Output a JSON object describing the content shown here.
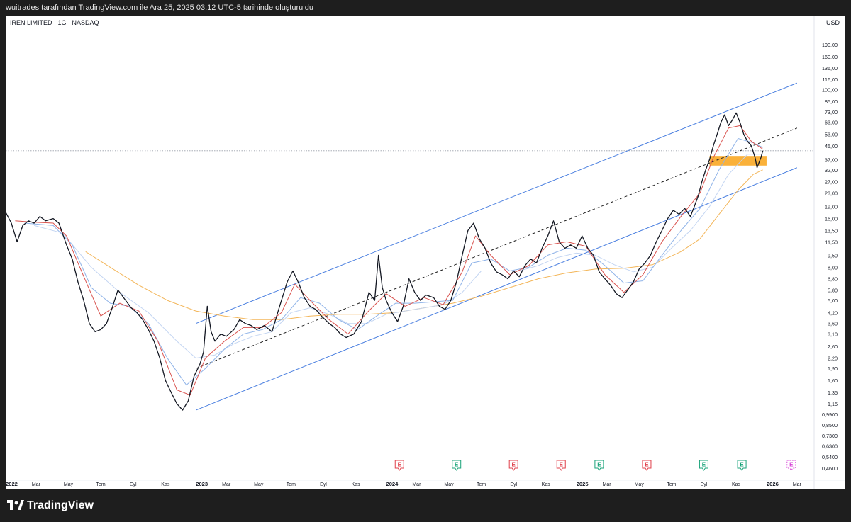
{
  "header": {
    "caption": "wuitrades tarafından TradingView.com ile Ara 25, 2025 03:12 UTC-5 tarihinde oluşturuldu"
  },
  "chart_data": {
    "type": "line",
    "title": "IREN LIMITED · 1G · NASDAQ",
    "currency": "USD",
    "y_scale": "log",
    "ylim": [
      0.42,
      230
    ],
    "xlim": [
      2022.0,
      2026.25
    ],
    "y_ticks": [
      {
        "value": 190,
        "label": "190,00"
      },
      {
        "value": 160,
        "label": "160,00"
      },
      {
        "value": 136,
        "label": "136,00"
      },
      {
        "value": 116,
        "label": "116,00"
      },
      {
        "value": 100,
        "label": "100,00"
      },
      {
        "value": 85,
        "label": "85,00"
      },
      {
        "value": 73,
        "label": "73,00"
      },
      {
        "value": 63,
        "label": "63,00"
      },
      {
        "value": 53,
        "label": "53,00"
      },
      {
        "value": 45,
        "label": "45,00"
      },
      {
        "value": 37,
        "label": "37,00"
      },
      {
        "value": 32,
        "label": "32,00"
      },
      {
        "value": 27,
        "label": "27,00"
      },
      {
        "value": 23,
        "label": "23,00"
      },
      {
        "value": 19,
        "label": "19,00"
      },
      {
        "value": 16,
        "label": "16,00"
      },
      {
        "value": 13.5,
        "label": "13,50"
      },
      {
        "value": 11.5,
        "label": "11,50"
      },
      {
        "value": 9.5,
        "label": "9,50"
      },
      {
        "value": 8.0,
        "label": "8,00"
      },
      {
        "value": 6.8,
        "label": "6,80"
      },
      {
        "value": 5.8,
        "label": "5,80"
      },
      {
        "value": 5.0,
        "label": "5,00"
      },
      {
        "value": 4.2,
        "label": "4,20"
      },
      {
        "value": 3.6,
        "label": "3,60"
      },
      {
        "value": 3.1,
        "label": "3,10"
      },
      {
        "value": 2.6,
        "label": "2,60"
      },
      {
        "value": 2.2,
        "label": "2,20"
      },
      {
        "value": 1.9,
        "label": "1,90"
      },
      {
        "value": 1.6,
        "label": "1,60"
      },
      {
        "value": 1.35,
        "label": "1,35"
      },
      {
        "value": 1.15,
        "label": "1,15"
      },
      {
        "value": 0.99,
        "label": "0,9900"
      },
      {
        "value": 0.85,
        "label": "0,8500"
      },
      {
        "value": 0.73,
        "label": "0,7300"
      },
      {
        "value": 0.63,
        "label": "0,6300"
      },
      {
        "value": 0.54,
        "label": "0,5400"
      },
      {
        "value": 0.46,
        "label": "0,4600"
      }
    ],
    "x_ticks": [
      {
        "t": 2022.0,
        "label": "2022",
        "bold": true
      },
      {
        "t": 2022.16,
        "label": "Mar"
      },
      {
        "t": 2022.33,
        "label": "May"
      },
      {
        "t": 2022.5,
        "label": "Tem"
      },
      {
        "t": 2022.67,
        "label": "Eyl"
      },
      {
        "t": 2022.84,
        "label": "Kas"
      },
      {
        "t": 2023.0,
        "label": "2023",
        "bold": true
      },
      {
        "t": 2023.16,
        "label": "Mar"
      },
      {
        "t": 2023.33,
        "label": "May"
      },
      {
        "t": 2023.5,
        "label": "Tem"
      },
      {
        "t": 2023.67,
        "label": "Eyl"
      },
      {
        "t": 2023.84,
        "label": "Kas"
      },
      {
        "t": 2024.0,
        "label": "2024",
        "bold": true
      },
      {
        "t": 2024.16,
        "label": "Mar"
      },
      {
        "t": 2024.33,
        "label": "May"
      },
      {
        "t": 2024.5,
        "label": "Tem"
      },
      {
        "t": 2024.67,
        "label": "Eyl"
      },
      {
        "t": 2024.84,
        "label": "Kas"
      },
      {
        "t": 2025.0,
        "label": "2025",
        "bold": true
      },
      {
        "t": 2025.16,
        "label": "Mar"
      },
      {
        "t": 2025.33,
        "label": "May"
      },
      {
        "t": 2025.5,
        "label": "Tem"
      },
      {
        "t": 2025.67,
        "label": "Eyl"
      },
      {
        "t": 2025.84,
        "label": "Kas"
      },
      {
        "t": 2026.0,
        "label": "2026",
        "bold": true
      },
      {
        "t": 2026.16,
        "label": "Mar"
      }
    ],
    "current_price_level": 42,
    "price": [
      [
        2022.0,
        17.5
      ],
      [
        2022.03,
        15.0
      ],
      [
        2022.06,
        11.5
      ],
      [
        2022.09,
        14.5
      ],
      [
        2022.12,
        15.5
      ],
      [
        2022.15,
        15.0
      ],
      [
        2022.18,
        16.5
      ],
      [
        2022.21,
        15.5
      ],
      [
        2022.25,
        16.0
      ],
      [
        2022.28,
        15.0
      ],
      [
        2022.32,
        11.0
      ],
      [
        2022.35,
        9.0
      ],
      [
        2022.38,
        6.5
      ],
      [
        2022.41,
        5.0
      ],
      [
        2022.44,
        3.6
      ],
      [
        2022.47,
        3.2
      ],
      [
        2022.5,
        3.3
      ],
      [
        2022.53,
        3.6
      ],
      [
        2022.56,
        4.5
      ],
      [
        2022.59,
        5.8
      ],
      [
        2022.62,
        5.2
      ],
      [
        2022.66,
        4.5
      ],
      [
        2022.69,
        4.2
      ],
      [
        2022.72,
        3.8
      ],
      [
        2022.75,
        3.3
      ],
      [
        2022.78,
        2.8
      ],
      [
        2022.81,
        2.2
      ],
      [
        2022.84,
        1.6
      ],
      [
        2022.87,
        1.35
      ],
      [
        2022.9,
        1.15
      ],
      [
        2022.93,
        1.05
      ],
      [
        2022.96,
        1.2
      ],
      [
        2022.99,
        1.7
      ],
      [
        2023.02,
        2.0
      ],
      [
        2023.04,
        2.4
      ],
      [
        2023.06,
        4.6
      ],
      [
        2023.08,
        3.2
      ],
      [
        2023.1,
        2.8
      ],
      [
        2023.13,
        3.1
      ],
      [
        2023.16,
        3.0
      ],
      [
        2023.2,
        3.3
      ],
      [
        2023.23,
        3.8
      ],
      [
        2023.26,
        3.6
      ],
      [
        2023.29,
        3.5
      ],
      [
        2023.32,
        3.3
      ],
      [
        2023.36,
        3.5
      ],
      [
        2023.4,
        3.2
      ],
      [
        2023.44,
        4.6
      ],
      [
        2023.48,
        6.5
      ],
      [
        2023.51,
        7.6
      ],
      [
        2023.54,
        6.4
      ],
      [
        2023.57,
        5.2
      ],
      [
        2023.6,
        4.6
      ],
      [
        2023.63,
        4.4
      ],
      [
        2023.66,
        4.0
      ],
      [
        2023.7,
        3.6
      ],
      [
        2023.73,
        3.4
      ],
      [
        2023.76,
        3.1
      ],
      [
        2023.79,
        2.95
      ],
      [
        2023.83,
        3.1
      ],
      [
        2023.87,
        3.7
      ],
      [
        2023.91,
        5.6
      ],
      [
        2023.94,
        5.0
      ],
      [
        2023.96,
        9.5
      ],
      [
        2023.98,
        6.0
      ],
      [
        2024.0,
        5.0
      ],
      [
        2024.03,
        4.2
      ],
      [
        2024.06,
        3.7
      ],
      [
        2024.09,
        4.6
      ],
      [
        2024.12,
        6.8
      ],
      [
        2024.15,
        5.6
      ],
      [
        2024.18,
        5.0
      ],
      [
        2024.21,
        5.4
      ],
      [
        2024.25,
        5.2
      ],
      [
        2024.28,
        4.6
      ],
      [
        2024.31,
        4.4
      ],
      [
        2024.34,
        5.0
      ],
      [
        2024.37,
        6.5
      ],
      [
        2024.4,
        9.5
      ],
      [
        2024.43,
        13.5
      ],
      [
        2024.46,
        15.0
      ],
      [
        2024.49,
        12.0
      ],
      [
        2024.52,
        10.5
      ],
      [
        2024.55,
        8.5
      ],
      [
        2024.58,
        7.5
      ],
      [
        2024.61,
        7.2
      ],
      [
        2024.64,
        6.8
      ],
      [
        2024.67,
        7.6
      ],
      [
        2024.7,
        7.0
      ],
      [
        2024.73,
        8.2
      ],
      [
        2024.76,
        9.0
      ],
      [
        2024.79,
        8.5
      ],
      [
        2024.82,
        10.5
      ],
      [
        2024.85,
        12.5
      ],
      [
        2024.88,
        15.5
      ],
      [
        2024.91,
        11.5
      ],
      [
        2024.94,
        10.5
      ],
      [
        2024.97,
        11.0
      ],
      [
        2025.0,
        10.5
      ],
      [
        2025.03,
        12.5
      ],
      [
        2025.06,
        10.5
      ],
      [
        2025.09,
        9.5
      ],
      [
        2025.12,
        7.5
      ],
      [
        2025.15,
        6.8
      ],
      [
        2025.18,
        6.2
      ],
      [
        2025.21,
        5.5
      ],
      [
        2025.24,
        5.2
      ],
      [
        2025.27,
        5.8
      ],
      [
        2025.3,
        6.5
      ],
      [
        2025.33,
        7.8
      ],
      [
        2025.36,
        8.5
      ],
      [
        2025.39,
        9.5
      ],
      [
        2025.42,
        11.5
      ],
      [
        2025.45,
        13.5
      ],
      [
        2025.48,
        16.0
      ],
      [
        2025.51,
        18.0
      ],
      [
        2025.54,
        17.0
      ],
      [
        2025.57,
        18.5
      ],
      [
        2025.6,
        16.5
      ],
      [
        2025.62,
        19.0
      ],
      [
        2025.64,
        22.0
      ],
      [
        2025.66,
        27.0
      ],
      [
        2025.68,
        32.0
      ],
      [
        2025.7,
        37.0
      ],
      [
        2025.72,
        45.0
      ],
      [
        2025.74,
        53.0
      ],
      [
        2025.76,
        63.0
      ],
      [
        2025.78,
        70.0
      ],
      [
        2025.8,
        60.0
      ],
      [
        2025.82,
        65.0
      ],
      [
        2025.84,
        72.0
      ],
      [
        2025.86,
        63.0
      ],
      [
        2025.88,
        53.0
      ],
      [
        2025.9,
        48.0
      ],
      [
        2025.92,
        45.0
      ],
      [
        2025.94,
        38.0
      ],
      [
        2025.95,
        33.0
      ],
      [
        2025.97,
        38.0
      ],
      [
        2025.98,
        42.0
      ]
    ],
    "ma_fast": [
      [
        2022.05,
        15.5
      ],
      [
        2022.15,
        15.2
      ],
      [
        2022.25,
        15.0
      ],
      [
        2022.32,
        12.5
      ],
      [
        2022.4,
        7.5
      ],
      [
        2022.5,
        4.0
      ],
      [
        2022.6,
        4.8
      ],
      [
        2022.7,
        4.3
      ],
      [
        2022.8,
        2.8
      ],
      [
        2022.9,
        1.4
      ],
      [
        2022.97,
        1.3
      ],
      [
        2023.05,
        2.2
      ],
      [
        2023.15,
        2.8
      ],
      [
        2023.25,
        3.4
      ],
      [
        2023.35,
        3.4
      ],
      [
        2023.45,
        4.2
      ],
      [
        2023.52,
        6.3
      ],
      [
        2023.6,
        5.0
      ],
      [
        2023.7,
        3.8
      ],
      [
        2023.8,
        3.1
      ],
      [
        2023.9,
        4.2
      ],
      [
        2024.0,
        5.5
      ],
      [
        2024.1,
        4.6
      ],
      [
        2024.2,
        5.2
      ],
      [
        2024.3,
        4.7
      ],
      [
        2024.4,
        7.5
      ],
      [
        2024.47,
        12.5
      ],
      [
        2024.55,
        9.5
      ],
      [
        2024.65,
        7.2
      ],
      [
        2024.75,
        8.2
      ],
      [
        2024.85,
        11.0
      ],
      [
        2024.95,
        11.5
      ],
      [
        2025.05,
        10.8
      ],
      [
        2025.15,
        7.2
      ],
      [
        2025.25,
        5.6
      ],
      [
        2025.35,
        7.2
      ],
      [
        2025.45,
        11.5
      ],
      [
        2025.55,
        16.5
      ],
      [
        2025.65,
        23.0
      ],
      [
        2025.72,
        38.0
      ],
      [
        2025.8,
        58.0
      ],
      [
        2025.86,
        60.0
      ],
      [
        2025.92,
        48.0
      ],
      [
        2025.98,
        43.0
      ]
    ],
    "ma_mid": [
      [
        2022.1,
        15.0
      ],
      [
        2022.25,
        14.5
      ],
      [
        2022.35,
        11.0
      ],
      [
        2022.45,
        6.0
      ],
      [
        2022.55,
        4.8
      ],
      [
        2022.65,
        4.6
      ],
      [
        2022.75,
        3.6
      ],
      [
        2022.85,
        2.2
      ],
      [
        2022.95,
        1.5
      ],
      [
        2023.05,
        1.9
      ],
      [
        2023.15,
        2.5
      ],
      [
        2023.25,
        3.1
      ],
      [
        2023.35,
        3.3
      ],
      [
        2023.45,
        3.8
      ],
      [
        2023.55,
        5.2
      ],
      [
        2023.65,
        4.8
      ],
      [
        2023.75,
        3.8
      ],
      [
        2023.85,
        3.3
      ],
      [
        2023.95,
        4.0
      ],
      [
        2024.05,
        4.8
      ],
      [
        2024.15,
        4.8
      ],
      [
        2024.25,
        4.9
      ],
      [
        2024.35,
        5.0
      ],
      [
        2024.45,
        8.5
      ],
      [
        2024.55,
        9.0
      ],
      [
        2024.65,
        7.6
      ],
      [
        2024.75,
        8.0
      ],
      [
        2024.85,
        9.5
      ],
      [
        2024.95,
        10.5
      ],
      [
        2025.05,
        10.2
      ],
      [
        2025.15,
        8.2
      ],
      [
        2025.25,
        6.4
      ],
      [
        2025.35,
        6.6
      ],
      [
        2025.45,
        9.5
      ],
      [
        2025.55,
        13.5
      ],
      [
        2025.65,
        18.5
      ],
      [
        2025.75,
        32.0
      ],
      [
        2025.85,
        50.0
      ],
      [
        2025.93,
        47.0
      ],
      [
        2025.98,
        44.0
      ]
    ],
    "ma_slow": [
      [
        2022.15,
        14.5
      ],
      [
        2022.3,
        13.0
      ],
      [
        2022.45,
        8.0
      ],
      [
        2022.6,
        5.6
      ],
      [
        2022.75,
        4.2
      ],
      [
        2022.9,
        2.8
      ],
      [
        2023.0,
        2.2
      ],
      [
        2023.1,
        2.3
      ],
      [
        2023.2,
        2.7
      ],
      [
        2023.3,
        3.0
      ],
      [
        2023.4,
        3.2
      ],
      [
        2023.5,
        4.2
      ],
      [
        2023.6,
        4.5
      ],
      [
        2023.7,
        4.1
      ],
      [
        2023.8,
        3.6
      ],
      [
        2023.9,
        3.6
      ],
      [
        2024.0,
        4.1
      ],
      [
        2024.1,
        4.3
      ],
      [
        2024.2,
        4.5
      ],
      [
        2024.3,
        4.7
      ],
      [
        2024.4,
        5.6
      ],
      [
        2024.5,
        7.6
      ],
      [
        2024.6,
        7.6
      ],
      [
        2024.7,
        7.6
      ],
      [
        2024.8,
        8.2
      ],
      [
        2024.9,
        9.2
      ],
      [
        2025.0,
        9.8
      ],
      [
        2025.1,
        9.5
      ],
      [
        2025.2,
        8.3
      ],
      [
        2025.3,
        7.5
      ],
      [
        2025.4,
        8.0
      ],
      [
        2025.5,
        10.5
      ],
      [
        2025.6,
        13.5
      ],
      [
        2025.7,
        19.0
      ],
      [
        2025.8,
        30.0
      ],
      [
        2025.9,
        40.0
      ],
      [
        2025.98,
        40.0
      ]
    ],
    "ma_200": [
      [
        2022.42,
        10.0
      ],
      [
        2022.55,
        8.0
      ],
      [
        2022.7,
        6.2
      ],
      [
        2022.85,
        5.0
      ],
      [
        2023.0,
        4.3
      ],
      [
        2023.15,
        4.0
      ],
      [
        2023.3,
        3.8
      ],
      [
        2023.45,
        3.8
      ],
      [
        2023.6,
        4.0
      ],
      [
        2023.75,
        4.1
      ],
      [
        2023.9,
        4.1
      ],
      [
        2024.05,
        4.2
      ],
      [
        2024.2,
        4.5
      ],
      [
        2024.35,
        4.8
      ],
      [
        2024.5,
        5.3
      ],
      [
        2024.65,
        6.0
      ],
      [
        2024.8,
        6.8
      ],
      [
        2024.95,
        7.4
      ],
      [
        2025.1,
        7.8
      ],
      [
        2025.25,
        7.9
      ],
      [
        2025.4,
        8.3
      ],
      [
        2025.55,
        10.0
      ],
      [
        2025.65,
        12.0
      ],
      [
        2025.75,
        17.0
      ],
      [
        2025.85,
        24.0
      ],
      [
        2025.93,
        30.0
      ],
      [
        2025.98,
        32.0
      ]
    ],
    "channel": {
      "upper": [
        [
          2023.0,
          3.6
        ],
        [
          2026.16,
          110.0
        ]
      ],
      "middle": [
        [
          2023.0,
          1.9
        ],
        [
          2026.16,
          58.0
        ]
      ],
      "lower": [
        [
          2023.0,
          1.05
        ],
        [
          2026.16,
          33.0
        ]
      ]
    },
    "support_zone": {
      "t_start": 2025.7,
      "t_end": 2026.0,
      "low": 34.0,
      "high": 39.0
    },
    "earnings_markers": [
      {
        "t": 2024.07,
        "letter": "E",
        "kind": "negative"
      },
      {
        "t": 2024.37,
        "letter": "E",
        "kind": "positive"
      },
      {
        "t": 2024.67,
        "letter": "E",
        "kind": "negative"
      },
      {
        "t": 2024.92,
        "letter": "E",
        "kind": "negative"
      },
      {
        "t": 2025.12,
        "letter": "E",
        "kind": "positive"
      },
      {
        "t": 2025.37,
        "letter": "E",
        "kind": "negative"
      },
      {
        "t": 2025.67,
        "letter": "E",
        "kind": "positive"
      },
      {
        "t": 2025.87,
        "letter": "E",
        "kind": "positive"
      },
      {
        "t": 2026.13,
        "letter": "E",
        "kind": "upcoming"
      }
    ],
    "colors": {
      "price": "#131722",
      "ma_fast": "#d9534f",
      "ma_mid": "#8fb3e8",
      "ma_slow": "#c3d5f2",
      "ma_200": "#f3b65a",
      "channel": "#4a7fe0",
      "middle": "#222222",
      "zone": "#f9a825",
      "earnings_negative": "#e0414b",
      "earnings_positive": "#1aa37a",
      "earnings_upcoming": "#d63fd6",
      "grid": "#f0f3fa",
      "axis_text": "#131722"
    }
  },
  "footer": {
    "brand": "TradingView"
  }
}
